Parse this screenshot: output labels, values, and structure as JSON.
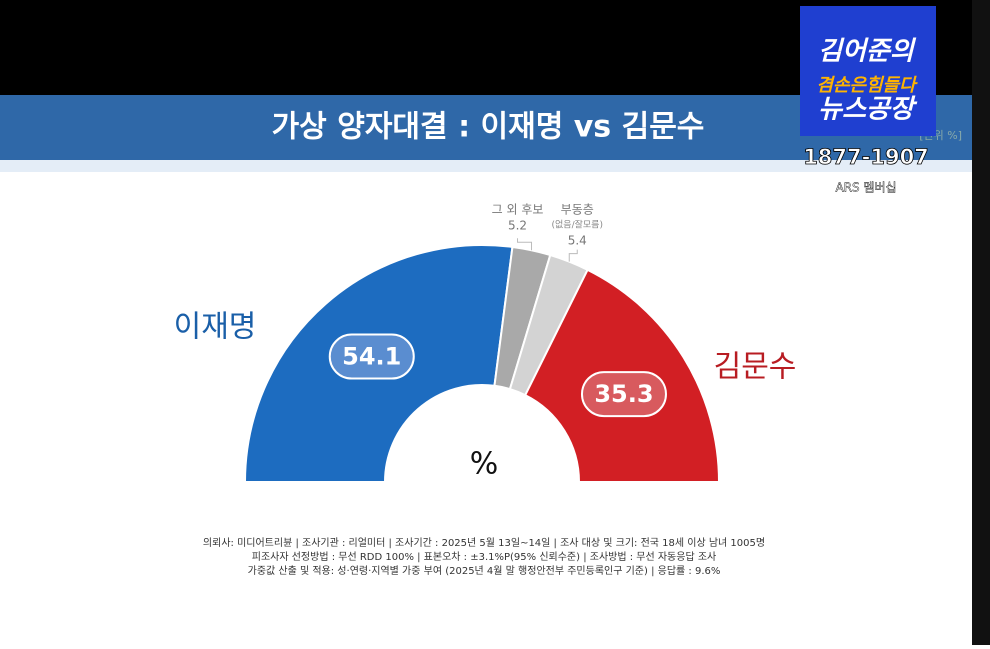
{
  "chart_data": {
    "type": "pie",
    "title": "가상 양자대결 : 이재명 vs 김문수",
    "unit_label": "[단위 %]",
    "center_label": "%",
    "categories": [
      "이재명",
      "그 외 후보",
      "부동층",
      "김문수"
    ],
    "category_notes": [
      null,
      null,
      "(없음/잘모름)",
      null
    ],
    "values": [
      54.1,
      5.2,
      5.4,
      35.3
    ],
    "colors": [
      "#1d6cc0",
      "#a9a9a9",
      "#d3d3d3",
      "#d21f24"
    ],
    "label_colors": [
      "#1a5fa8",
      null,
      null,
      "#b81c22"
    ],
    "source_notes": [
      "의뢰사: 미디어트리뷴 | 조사기관 : 리얼미터 | 조사기간 : 2025년 5월 13일~14일 | 조사 대상 및 크기: 전국 18세 이상 남녀 1005명",
      "피조사자 선정방법 : 무선 RDD 100% | 표본오차 : ±3.1%P(95% 신뢰수준) | 조사방법 : 무선 자동응답 조사",
      "가중값 산출 및 적용: 성·연령·지역별 가중 부여 (2025년 4월 말 행정안전부 주민등록인구 기준) | 응답률 : 9.6%"
    ]
  },
  "broadcast_logo": {
    "line1": "김어준의",
    "line2": "겸손은힘들다",
    "line3": "뉴스공장",
    "phone": "1877-1907",
    "caption": "ARS 멤버십"
  }
}
